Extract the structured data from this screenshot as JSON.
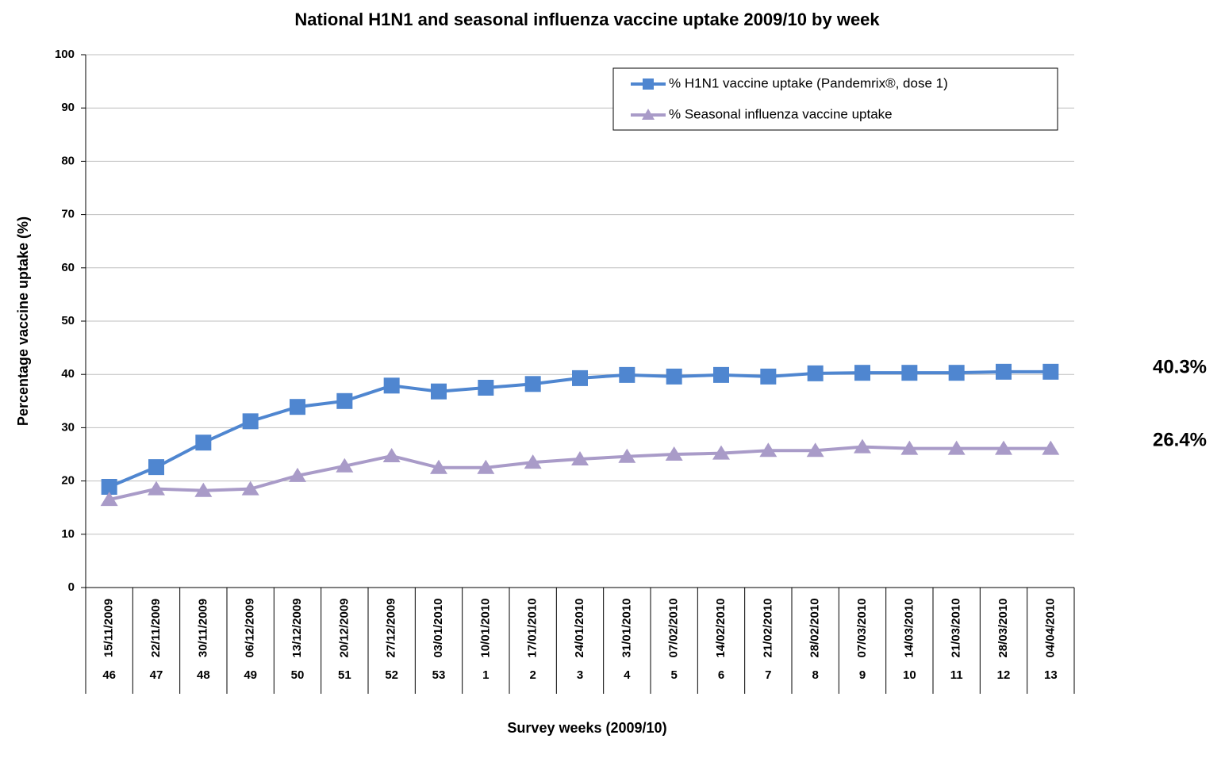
{
  "chart_data": {
    "type": "line",
    "title": "National H1N1 and seasonal influenza vaccine uptake 2009/10 by week",
    "y_label": "Percentage vaccine uptake (%)",
    "x_label": "Survey weeks (2009/10)",
    "categories": [
      "15/11/2009",
      "22/11/2009",
      "30/11/2009",
      "06/12/2009",
      "13/12/2009",
      "20/12/2009",
      "27/12/2009",
      "03/01/2010",
      "10/01/2010",
      "17/01/2010",
      "24/01/2010",
      "31/01/2010",
      "07/02/2010",
      "14/02/2010",
      "21/02/2010",
      "28/02/2010",
      "07/03/2010",
      "14/03/2010",
      "21/03/2010",
      "28/03/2010",
      "04/04/2010"
    ],
    "weeks": [
      46,
      47,
      48,
      49,
      50,
      51,
      52,
      53,
      1,
      2,
      3,
      4,
      5,
      6,
      7,
      8,
      9,
      10,
      11,
      12,
      13
    ],
    "series": [
      {
        "name": "% H1N1 vaccine uptake (Pandemrix®, dose 1)",
        "color": "#4f86d0",
        "marker": "square",
        "values": [
          18.9,
          22.6,
          27.2,
          31.2,
          33.9,
          35.0,
          37.9,
          36.8,
          37.5,
          38.2,
          39.3,
          39.9,
          39.6,
          39.9,
          39.6,
          40.2,
          40.3,
          40.3,
          40.3,
          40.5,
          40.5
        ]
      },
      {
        "name": "% Seasonal influenza vaccine uptake",
        "color": "#a99bc8",
        "marker": "triangle",
        "values": [
          16.5,
          18.5,
          18.2,
          18.5,
          21.0,
          22.8,
          24.7,
          22.5,
          22.5,
          23.5,
          24.1,
          24.6,
          25.0,
          25.2,
          25.7,
          25.7,
          26.4,
          26.1,
          26.1,
          26.1,
          26.1
        ]
      }
    ],
    "annotations": [
      "40.3%",
      "26.4%"
    ],
    "ylim": [
      0,
      100
    ],
    "yticks": [
      0,
      10,
      20,
      30,
      40,
      50,
      60,
      70,
      80,
      90,
      100
    ],
    "grid": true,
    "legend": "top-right"
  }
}
